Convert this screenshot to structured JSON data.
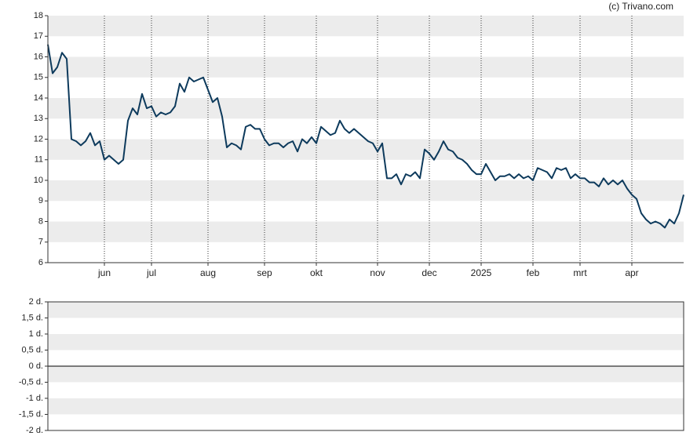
{
  "chart_data": [
    {
      "type": "line",
      "source": "(c) Trivano.com",
      "categories": [
        null,
        null,
        null,
        null,
        null,
        null,
        null,
        null,
        null,
        null,
        null,
        null,
        "jun",
        null,
        null,
        null,
        null,
        null,
        null,
        null,
        null,
        null,
        "jul",
        null,
        null,
        null,
        null,
        null,
        null,
        null,
        null,
        null,
        null,
        null,
        "aug",
        null,
        null,
        null,
        null,
        null,
        null,
        null,
        null,
        null,
        null,
        null,
        "sep",
        null,
        null,
        null,
        null,
        null,
        null,
        null,
        null,
        null,
        null,
        "okt",
        null,
        null,
        null,
        null,
        null,
        null,
        null,
        null,
        null,
        null,
        null,
        null,
        "nov",
        null,
        null,
        null,
        null,
        null,
        null,
        null,
        null,
        null,
        null,
        "dec",
        null,
        null,
        null,
        null,
        null,
        null,
        null,
        null,
        null,
        null,
        "2025",
        null,
        null,
        null,
        null,
        null,
        null,
        null,
        null,
        null,
        null,
        "feb",
        null,
        null,
        null,
        null,
        null,
        null,
        null,
        null,
        null,
        "mrt",
        null,
        null,
        null,
        null,
        null,
        null,
        null,
        null,
        null,
        null,
        "apr",
        null,
        null,
        null,
        null,
        null,
        null,
        null,
        null,
        null,
        null,
        null
      ],
      "series": [
        {
          "color": "#0d3a5c",
          "values": [
            16.6,
            15.2,
            15.5,
            16.2,
            15.9,
            12.0,
            11.9,
            11.7,
            11.9,
            12.3,
            11.7,
            11.9,
            11.0,
            11.2,
            11.0,
            10.8,
            11.0,
            12.9,
            13.5,
            13.2,
            14.2,
            13.5,
            13.6,
            13.1,
            13.3,
            13.2,
            13.3,
            13.6,
            14.7,
            14.3,
            15.0,
            14.8,
            14.9,
            15.0,
            14.4,
            13.8,
            14.0,
            13.1,
            11.6,
            11.8,
            11.7,
            11.5,
            12.6,
            12.7,
            12.5,
            12.5,
            12.0,
            11.7,
            11.8,
            11.8,
            11.6,
            11.8,
            11.9,
            11.4,
            12.0,
            11.8,
            12.1,
            11.8,
            12.6,
            12.4,
            12.2,
            12.3,
            12.9,
            12.5,
            12.3,
            12.5,
            12.3,
            12.1,
            11.9,
            11.8,
            11.4,
            11.8,
            10.1,
            10.1,
            10.3,
            9.8,
            10.3,
            10.2,
            10.4,
            10.1,
            11.5,
            11.3,
            11.0,
            11.4,
            11.9,
            11.5,
            11.4,
            11.1,
            11.0,
            10.8,
            10.5,
            10.3,
            10.3,
            10.8,
            10.4,
            10.0,
            10.2,
            10.2,
            10.3,
            10.1,
            10.3,
            10.1,
            10.2,
            10.0,
            10.6,
            10.5,
            10.4,
            10.1,
            10.6,
            10.5,
            10.6,
            10.1,
            10.3,
            10.1,
            10.1,
            9.9,
            9.9,
            9.7,
            10.1,
            9.8,
            10.0,
            9.8,
            10.0,
            9.6,
            9.3,
            9.1,
            8.4,
            8.1,
            7.9,
            8.0,
            7.9,
            7.7,
            8.1,
            7.9,
            8.4,
            9.3
          ]
        }
      ],
      "ylim": [
        6,
        18
      ],
      "yticks": [
        6,
        7,
        8,
        9,
        10,
        11,
        12,
        13,
        14,
        15,
        16,
        17,
        18
      ],
      "grid": true
    },
    {
      "type": "line",
      "series": [],
      "ylim": [
        -2,
        2
      ],
      "yticks": [
        {
          "value": -2,
          "label": "-2 d."
        },
        {
          "value": -1.5,
          "label": "-1,5 d."
        },
        {
          "value": -1,
          "label": "-1 d."
        },
        {
          "value": -0.5,
          "label": "-0,5 d."
        },
        {
          "value": 0,
          "label": "0 d."
        },
        {
          "value": 0.5,
          "label": "0,5 d."
        },
        {
          "value": 1,
          "label": "1 d."
        },
        {
          "value": 1.5,
          "label": "1,5 d."
        },
        {
          "value": 2,
          "label": "2 d."
        }
      ]
    }
  ]
}
